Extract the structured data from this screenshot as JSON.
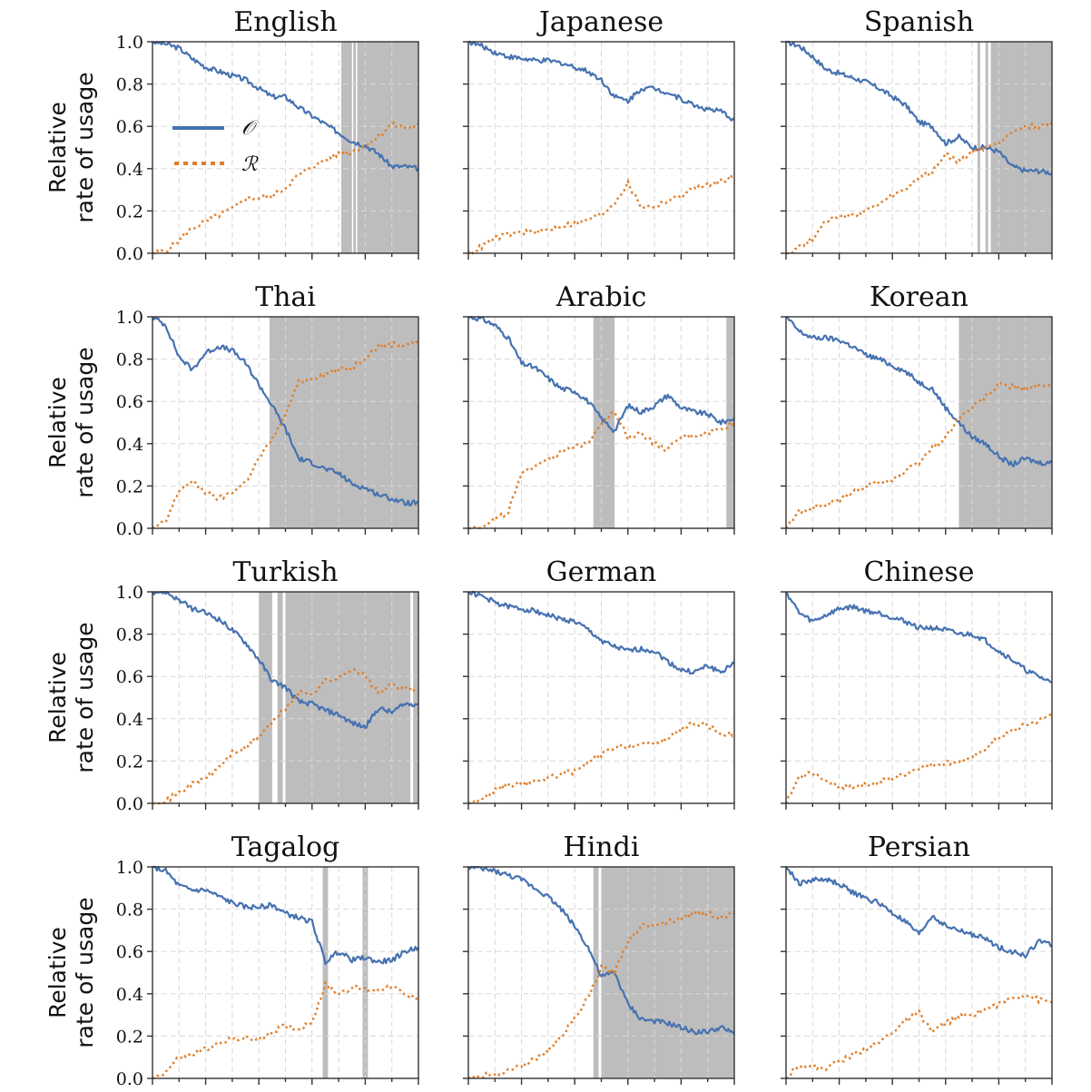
{
  "chart_data": {
    "type": "line",
    "ylabel": [
      "Relative",
      "rate of usage"
    ],
    "ylim": [
      0,
      1
    ],
    "xlim": [
      0,
      1
    ],
    "yticks": [
      "0.0",
      "0.2",
      "0.4",
      "0.6",
      "0.8",
      "1.0"
    ],
    "x_major_ticks": 6,
    "x_minor_ticks": 11,
    "grid": true,
    "legend": {
      "placement": "center-left",
      "panel": "English",
      "entries": [
        {
          "name": "𝒪",
          "style": "solid",
          "color": "#4672b0"
        },
        {
          "name": "ℛ",
          "style": "dotted",
          "color": "#e07f2a"
        }
      ]
    },
    "colors": {
      "O": "#4672b0",
      "R": "#e07f2a",
      "shade": "#bdbdbd"
    },
    "x": [
      0,
      0.05,
      0.1,
      0.15,
      0.2,
      0.25,
      0.3,
      0.35,
      0.4,
      0.45,
      0.5,
      0.55,
      0.6,
      0.65,
      0.7,
      0.75,
      0.8,
      0.85,
      0.9,
      0.95,
      1.0
    ],
    "panels": [
      {
        "title": "English",
        "shaded": [
          [
            0.71,
            0.75
          ],
          [
            0.755,
            0.765
          ],
          [
            0.77,
            1.0
          ]
        ],
        "O": [
          1.0,
          0.99,
          0.97,
          0.92,
          0.88,
          0.86,
          0.84,
          0.82,
          0.78,
          0.74,
          0.74,
          0.69,
          0.65,
          0.61,
          0.57,
          0.53,
          0.51,
          0.47,
          0.41,
          0.41,
          0.4
        ],
        "R": [
          0.0,
          0.01,
          0.06,
          0.12,
          0.15,
          0.18,
          0.21,
          0.26,
          0.26,
          0.27,
          0.31,
          0.37,
          0.41,
          0.44,
          0.47,
          0.48,
          0.51,
          0.55,
          0.61,
          0.59,
          0.61
        ]
      },
      {
        "title": "Japanese",
        "shaded": [],
        "O": [
          1.0,
          0.98,
          0.95,
          0.93,
          0.92,
          0.91,
          0.91,
          0.9,
          0.88,
          0.86,
          0.82,
          0.74,
          0.72,
          0.78,
          0.78,
          0.76,
          0.73,
          0.7,
          0.68,
          0.67,
          0.63
        ],
        "R": [
          0.0,
          0.03,
          0.07,
          0.09,
          0.1,
          0.1,
          0.11,
          0.13,
          0.14,
          0.16,
          0.18,
          0.24,
          0.33,
          0.22,
          0.22,
          0.25,
          0.27,
          0.31,
          0.32,
          0.34,
          0.37
        ]
      },
      {
        "title": "Spanish",
        "shaded": [
          [
            0.72,
            0.73
          ],
          [
            0.75,
            0.76
          ],
          [
            0.77,
            1.0
          ]
        ],
        "O": [
          1.0,
          0.98,
          0.93,
          0.87,
          0.85,
          0.83,
          0.81,
          0.78,
          0.74,
          0.7,
          0.62,
          0.6,
          0.52,
          0.55,
          0.5,
          0.5,
          0.48,
          0.41,
          0.39,
          0.39,
          0.38
        ],
        "R": [
          0.0,
          0.03,
          0.07,
          0.16,
          0.17,
          0.18,
          0.2,
          0.23,
          0.27,
          0.3,
          0.36,
          0.38,
          0.47,
          0.43,
          0.48,
          0.5,
          0.52,
          0.58,
          0.6,
          0.6,
          0.61
        ]
      },
      {
        "title": "Thai",
        "shaded": [
          [
            0.44,
            1.0
          ]
        ],
        "O": [
          1.0,
          0.96,
          0.81,
          0.75,
          0.83,
          0.86,
          0.84,
          0.78,
          0.68,
          0.58,
          0.47,
          0.33,
          0.31,
          0.28,
          0.26,
          0.21,
          0.19,
          0.16,
          0.14,
          0.12,
          0.12
        ],
        "R": [
          0.0,
          0.03,
          0.18,
          0.22,
          0.17,
          0.14,
          0.17,
          0.22,
          0.33,
          0.42,
          0.54,
          0.69,
          0.71,
          0.73,
          0.75,
          0.76,
          0.81,
          0.86,
          0.87,
          0.87,
          0.88
        ]
      },
      {
        "title": "Arabic",
        "shaded": [
          [
            0.47,
            0.55
          ],
          [
            0.97,
            1.0
          ]
        ],
        "O": [
          1.0,
          0.99,
          0.96,
          0.9,
          0.78,
          0.76,
          0.71,
          0.66,
          0.65,
          0.6,
          0.52,
          0.46,
          0.58,
          0.55,
          0.58,
          0.63,
          0.57,
          0.55,
          0.54,
          0.5,
          0.52
        ],
        "R": [
          0.0,
          0.01,
          0.04,
          0.08,
          0.25,
          0.3,
          0.33,
          0.36,
          0.38,
          0.41,
          0.5,
          0.55,
          0.43,
          0.45,
          0.4,
          0.37,
          0.43,
          0.44,
          0.45,
          0.47,
          0.5
        ]
      },
      {
        "title": "Korean",
        "shaded": [
          [
            0.65,
            1.0
          ]
        ],
        "O": [
          1.0,
          0.93,
          0.9,
          0.9,
          0.89,
          0.86,
          0.82,
          0.8,
          0.77,
          0.74,
          0.69,
          0.66,
          0.57,
          0.5,
          0.43,
          0.4,
          0.34,
          0.3,
          0.33,
          0.31,
          0.31
        ],
        "R": [
          0.0,
          0.08,
          0.1,
          0.11,
          0.13,
          0.17,
          0.2,
          0.22,
          0.23,
          0.27,
          0.31,
          0.38,
          0.43,
          0.52,
          0.57,
          0.62,
          0.68,
          0.67,
          0.66,
          0.67,
          0.67
        ]
      },
      {
        "title": "Turkish",
        "shaded": [
          [
            0.4,
            0.45
          ],
          [
            0.47,
            0.49
          ],
          [
            0.5,
            0.97
          ],
          [
            0.98,
            1.0
          ]
        ],
        "O": [
          1.0,
          1.0,
          0.96,
          0.92,
          0.9,
          0.87,
          0.82,
          0.76,
          0.68,
          0.58,
          0.55,
          0.48,
          0.47,
          0.44,
          0.42,
          0.38,
          0.36,
          0.45,
          0.43,
          0.47,
          0.47
        ],
        "R": [
          0.0,
          0.01,
          0.05,
          0.09,
          0.12,
          0.17,
          0.24,
          0.26,
          0.32,
          0.38,
          0.45,
          0.52,
          0.52,
          0.58,
          0.59,
          0.64,
          0.6,
          0.52,
          0.56,
          0.54,
          0.54
        ]
      },
      {
        "title": "German",
        "shaded": [],
        "O": [
          1.0,
          0.98,
          0.95,
          0.93,
          0.92,
          0.91,
          0.89,
          0.87,
          0.86,
          0.82,
          0.77,
          0.74,
          0.72,
          0.73,
          0.72,
          0.67,
          0.63,
          0.62,
          0.65,
          0.62,
          0.66
        ],
        "R": [
          0.0,
          0.02,
          0.06,
          0.09,
          0.09,
          0.1,
          0.12,
          0.14,
          0.15,
          0.19,
          0.23,
          0.26,
          0.27,
          0.28,
          0.28,
          0.31,
          0.35,
          0.38,
          0.37,
          0.33,
          0.33
        ]
      },
      {
        "title": "Chinese",
        "shaded": [],
        "O": [
          1.0,
          0.9,
          0.86,
          0.89,
          0.92,
          0.93,
          0.91,
          0.9,
          0.88,
          0.86,
          0.83,
          0.83,
          0.82,
          0.8,
          0.8,
          0.77,
          0.72,
          0.68,
          0.63,
          0.6,
          0.57
        ],
        "R": [
          0.0,
          0.12,
          0.15,
          0.1,
          0.08,
          0.08,
          0.09,
          0.1,
          0.12,
          0.14,
          0.17,
          0.18,
          0.19,
          0.2,
          0.21,
          0.26,
          0.31,
          0.34,
          0.37,
          0.39,
          0.42
        ]
      },
      {
        "title": "Tagalog",
        "shaded": [
          [
            0.64,
            0.66
          ],
          [
            0.79,
            0.81
          ]
        ],
        "O": [
          1.0,
          0.98,
          0.91,
          0.89,
          0.89,
          0.86,
          0.83,
          0.81,
          0.81,
          0.82,
          0.78,
          0.76,
          0.74,
          0.55,
          0.6,
          0.56,
          0.57,
          0.55,
          0.56,
          0.6,
          0.62
        ],
        "R": [
          0.0,
          0.03,
          0.1,
          0.11,
          0.14,
          0.16,
          0.19,
          0.19,
          0.18,
          0.22,
          0.25,
          0.23,
          0.27,
          0.44,
          0.4,
          0.43,
          0.42,
          0.42,
          0.44,
          0.39,
          0.38
        ]
      },
      {
        "title": "Hindi",
        "shaded": [
          [
            0.47,
            0.49
          ],
          [
            0.5,
            0.51
          ],
          [
            0.51,
            1.0
          ]
        ],
        "O": [
          1.0,
          0.99,
          0.98,
          0.96,
          0.94,
          0.9,
          0.86,
          0.8,
          0.72,
          0.62,
          0.48,
          0.5,
          0.35,
          0.28,
          0.27,
          0.26,
          0.24,
          0.22,
          0.22,
          0.24,
          0.21
        ],
        "R": [
          0.0,
          0.01,
          0.02,
          0.04,
          0.06,
          0.09,
          0.13,
          0.2,
          0.28,
          0.38,
          0.52,
          0.5,
          0.65,
          0.72,
          0.73,
          0.74,
          0.76,
          0.78,
          0.78,
          0.76,
          0.78
        ]
      },
      {
        "title": "Persian",
        "shaded": [],
        "O": [
          1.0,
          0.92,
          0.94,
          0.94,
          0.92,
          0.88,
          0.85,
          0.83,
          0.78,
          0.74,
          0.68,
          0.77,
          0.72,
          0.7,
          0.68,
          0.66,
          0.62,
          0.6,
          0.58,
          0.65,
          0.63
        ],
        "R": [
          0.0,
          0.07,
          0.05,
          0.05,
          0.08,
          0.11,
          0.14,
          0.17,
          0.22,
          0.27,
          0.31,
          0.22,
          0.26,
          0.29,
          0.3,
          0.33,
          0.35,
          0.38,
          0.4,
          0.37,
          0.36
        ]
      }
    ]
  }
}
